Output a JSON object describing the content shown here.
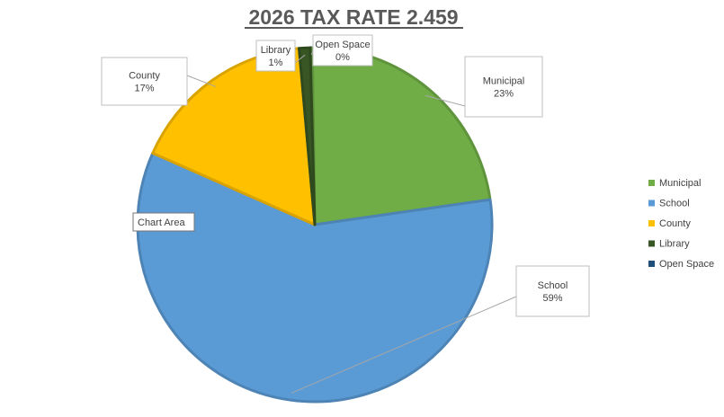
{
  "chart_data": {
    "type": "pie",
    "title": "2026 TAX RATE 2.459",
    "categories": [
      "Municipal",
      "School",
      "County",
      "Library",
      "Open Space"
    ],
    "values": [
      23,
      59,
      17,
      1,
      0.2
    ],
    "data_labels": [
      {
        "name": "Municipal",
        "pct": "23%"
      },
      {
        "name": "School",
        "pct": "59%"
      },
      {
        "name": "County",
        "pct": "17%"
      },
      {
        "name": "Library",
        "pct": "1%"
      },
      {
        "name": "Open Space",
        "pct": "0%"
      }
    ],
    "colors": [
      "#70ad47",
      "#5b9bd5",
      "#ffc000",
      "#375623",
      "#1f4e79"
    ],
    "legend_position": "right",
    "tooltip": "Chart Area"
  }
}
